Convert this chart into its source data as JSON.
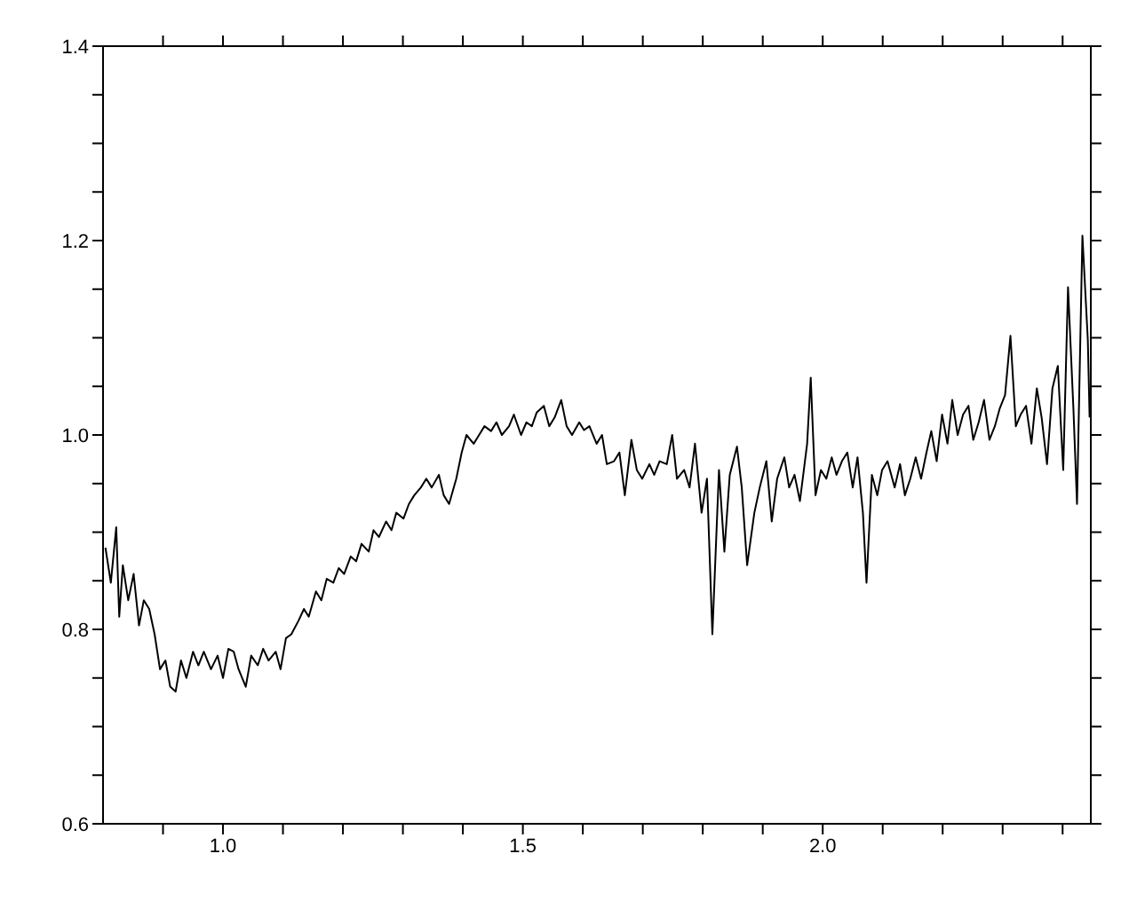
{
  "chart_data": {
    "type": "line",
    "marker": "none",
    "line_style": "solid",
    "xlim": [
      0.8,
      2.447
    ],
    "ylim": [
      0.6,
      1.4
    ],
    "xticks": [
      {
        "value": 0.9,
        "label": null
      },
      {
        "value": 1.0,
        "label": "1.0"
      },
      {
        "value": 1.1,
        "label": null
      },
      {
        "value": 1.2,
        "label": null
      },
      {
        "value": 1.3,
        "label": null
      },
      {
        "value": 1.4,
        "label": null
      },
      {
        "value": 1.5,
        "label": "1.5"
      },
      {
        "value": 1.6,
        "label": null
      },
      {
        "value": 1.7,
        "label": null
      },
      {
        "value": 1.8,
        "label": null
      },
      {
        "value": 1.9,
        "label": null
      },
      {
        "value": 2.0,
        "label": "2.0"
      },
      {
        "value": 2.1,
        "label": null
      },
      {
        "value": 2.2,
        "label": null
      },
      {
        "value": 2.3,
        "label": null
      },
      {
        "value": 2.4,
        "label": null
      }
    ],
    "yticks": [
      {
        "value": 0.6,
        "label": "0.6"
      },
      {
        "value": 0.65,
        "label": null
      },
      {
        "value": 0.7,
        "label": null
      },
      {
        "value": 0.75,
        "label": null
      },
      {
        "value": 0.8,
        "label": "0.8"
      },
      {
        "value": 0.85,
        "label": null
      },
      {
        "value": 0.9,
        "label": null
      },
      {
        "value": 0.95,
        "label": null
      },
      {
        "value": 1.0,
        "label": "1.0"
      },
      {
        "value": 1.05,
        "label": null
      },
      {
        "value": 1.1,
        "label": null
      },
      {
        "value": 1.15,
        "label": null
      },
      {
        "value": 1.2,
        "label": "1.2"
      },
      {
        "value": 1.25,
        "label": null
      },
      {
        "value": 1.3,
        "label": null
      },
      {
        "value": 1.35,
        "label": null
      },
      {
        "value": 1.4,
        "label": "1.4"
      }
    ],
    "series": [
      {
        "color": "#000000",
        "x": [
          0.804,
          0.813,
          0.822,
          0.827,
          0.833,
          0.842,
          0.851,
          0.86,
          0.868,
          0.877,
          0.886,
          0.895,
          0.904,
          0.912,
          0.921,
          0.93,
          0.939,
          0.95,
          0.959,
          0.968,
          0.98,
          0.991,
          1.0,
          1.009,
          1.018,
          1.026,
          1.038,
          1.047,
          1.058,
          1.067,
          1.076,
          1.088,
          1.096,
          1.105,
          1.114,
          1.126,
          1.135,
          1.143,
          1.155,
          1.164,
          1.173,
          1.184,
          1.193,
          1.202,
          1.213,
          1.222,
          1.231,
          1.243,
          1.251,
          1.26,
          1.272,
          1.281,
          1.289,
          1.301,
          1.31,
          1.319,
          1.33,
          1.339,
          1.348,
          1.36,
          1.368,
          1.377,
          1.389,
          1.398,
          1.406,
          1.418,
          1.427,
          1.436,
          1.447,
          1.456,
          1.465,
          1.477,
          1.485,
          1.497,
          1.506,
          1.515,
          1.523,
          1.535,
          1.544,
          1.553,
          1.564,
          1.573,
          1.582,
          1.594,
          1.602,
          1.611,
          1.623,
          1.632,
          1.64,
          1.652,
          1.661,
          1.67,
          1.681,
          1.69,
          1.699,
          1.711,
          1.719,
          1.728,
          1.74,
          1.749,
          1.757,
          1.769,
          1.778,
          1.787,
          1.798,
          1.807,
          1.816,
          1.827,
          1.836,
          1.845,
          1.857,
          1.865,
          1.874,
          1.886,
          1.895,
          1.906,
          1.915,
          1.924,
          1.936,
          1.944,
          1.953,
          1.962,
          1.974,
          1.98,
          1.988,
          1.997,
          2.006,
          2.015,
          2.023,
          2.032,
          2.041,
          2.05,
          2.058,
          2.067,
          2.073,
          2.082,
          2.091,
          2.099,
          2.108,
          2.12,
          2.129,
          2.137,
          2.146,
          2.155,
          2.164,
          2.173,
          2.181,
          2.19,
          2.199,
          2.208,
          2.216,
          2.225,
          2.234,
          2.243,
          2.251,
          2.26,
          2.269,
          2.278,
          2.287,
          2.295,
          2.304,
          2.313,
          2.322,
          2.33,
          2.339,
          2.348,
          2.357,
          2.365,
          2.374,
          2.383,
          2.392,
          2.401,
          2.409,
          2.418,
          2.424,
          2.433,
          2.442,
          2.445
        ],
        "values": [
          0.884,
          0.848,
          0.905,
          0.813,
          0.866,
          0.83,
          0.857,
          0.804,
          0.83,
          0.821,
          0.795,
          0.759,
          0.768,
          0.741,
          0.736,
          0.768,
          0.75,
          0.777,
          0.763,
          0.777,
          0.759,
          0.773,
          0.75,
          0.78,
          0.777,
          0.759,
          0.741,
          0.773,
          0.763,
          0.78,
          0.768,
          0.777,
          0.759,
          0.791,
          0.795,
          0.809,
          0.821,
          0.813,
          0.839,
          0.83,
          0.852,
          0.848,
          0.863,
          0.857,
          0.875,
          0.87,
          0.888,
          0.88,
          0.902,
          0.895,
          0.911,
          0.902,
          0.92,
          0.914,
          0.929,
          0.938,
          0.946,
          0.955,
          0.946,
          0.959,
          0.938,
          0.929,
          0.955,
          0.982,
          1.0,
          0.991,
          1.0,
          1.009,
          1.004,
          1.013,
          1.0,
          1.009,
          1.021,
          1.0,
          1.013,
          1.009,
          1.023,
          1.03,
          1.009,
          1.018,
          1.036,
          1.009,
          1.0,
          1.013,
          1.005,
          1.009,
          0.991,
          1.0,
          0.97,
          0.973,
          0.982,
          0.938,
          0.995,
          0.964,
          0.955,
          0.97,
          0.959,
          0.973,
          0.97,
          1.0,
          0.955,
          0.964,
          0.946,
          0.991,
          0.92,
          0.955,
          0.795,
          0.964,
          0.88,
          0.959,
          0.988,
          0.946,
          0.866,
          0.92,
          0.946,
          0.973,
          0.911,
          0.955,
          0.977,
          0.946,
          0.959,
          0.932,
          0.991,
          1.059,
          0.938,
          0.964,
          0.955,
          0.977,
          0.959,
          0.973,
          0.982,
          0.946,
          0.977,
          0.92,
          0.848,
          0.959,
          0.938,
          0.964,
          0.973,
          0.946,
          0.97,
          0.938,
          0.955,
          0.977,
          0.955,
          0.982,
          1.004,
          0.973,
          1.021,
          0.991,
          1.036,
          1.0,
          1.021,
          1.03,
          0.995,
          1.013,
          1.036,
          0.995,
          1.009,
          1.027,
          1.041,
          1.102,
          1.009,
          1.021,
          1.03,
          0.991,
          1.048,
          1.018,
          0.97,
          1.048,
          1.071,
          0.964,
          1.152,
          1.027,
          0.929,
          1.205,
          1.098,
          1.018
        ]
      }
    ]
  }
}
